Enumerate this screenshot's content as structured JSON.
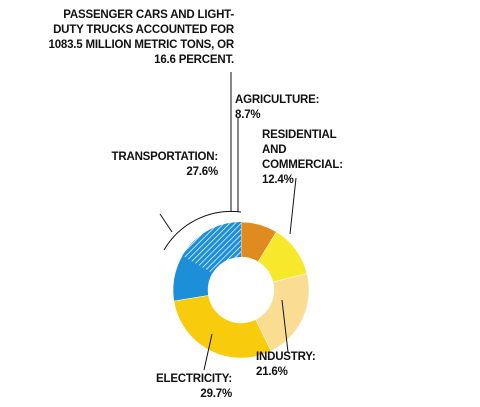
{
  "chart_data": {
    "type": "donut",
    "categories": [
      "AGRICULTURE:",
      "RESIDENTIAL AND COMMERCIAL:",
      "INDUSTRY:",
      "ELECTRICITY:",
      "TRANSPORTATION:"
    ],
    "values": [
      8.7,
      12.4,
      21.6,
      29.7,
      27.6
    ],
    "value_labels": [
      "8.7%",
      "12.4%",
      "21.6%",
      "29.7%",
      "27.6%"
    ],
    "colors": [
      "#e08b1f",
      "#f7e82c",
      "#fbdc93",
      "#f8cc0c",
      "#1d8fd9"
    ],
    "highlight": {
      "text": "PASSENGER CARS AND LIGHT-DUTY TRUCKS ACCOUNTED FOR 1083.5 MILLION METRIC TONS, OR 16.6 PERCENT.",
      "value": 16.6
    }
  }
}
